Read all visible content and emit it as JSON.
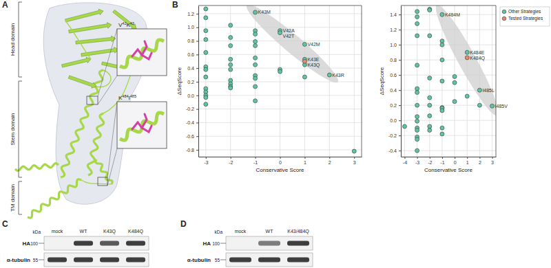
{
  "panel_labels": [
    "A",
    "B",
    "C",
    "D"
  ],
  "panel_a": {
    "domains": [
      "Head domain",
      "Stem domain",
      "TM domain"
    ],
    "insets": [
      {
        "residues": [
          {
            "aa": "V",
            "pos": "42"
          },
          {
            "aa": "K",
            "pos": "43"
          }
        ]
      },
      {
        "residues": [
          {
            "aa": "K",
            "pos": "484"
          },
          {
            "aa": "I",
            "pos": "485"
          }
        ]
      }
    ]
  },
  "chart_data": [
    {
      "type": "scatter",
      "x_label": "Conservative Score",
      "y_label": "ΔSeqScore",
      "xlim": [
        -3.3,
        3.3
      ],
      "ylim": [
        -0.9,
        1.32
      ],
      "xticks": [
        -3,
        -2,
        -1,
        0,
        1,
        2,
        3
      ],
      "yticks": [
        -0.8,
        -0.6,
        -0.4,
        -0.2,
        {
          "value": 0,
          "label": "0.0"
        },
        0.2,
        0.4,
        0.6,
        0.8,
        {
          "value": 1,
          "label": "1.0"
        },
        1.2
      ],
      "grid": true,
      "series": [
        {
          "name": "Other Strategies",
          "color": "#63c2a5",
          "x": [
            -3,
            -3,
            -3,
            -3,
            -3,
            -3,
            -3,
            -3,
            -3,
            -3,
            -3,
            -3,
            -3,
            -2,
            -2,
            -2,
            -2,
            -2,
            -2,
            -2,
            -2,
            -2,
            -2,
            -1,
            -1,
            -1,
            -1,
            -1,
            -1,
            -1,
            -1,
            -1,
            -1,
            -1,
            0,
            0,
            0,
            0,
            1,
            1,
            1,
            1,
            2,
            3
          ],
          "values": [
            1.27,
            1.14,
            0.95,
            0.82,
            0.63,
            0.42,
            0.38,
            0.27,
            0.1,
            0.05,
            0.0,
            -0.03,
            -0.13,
            1.03,
            0.85,
            0.73,
            0.53,
            0.45,
            0.38,
            0.22,
            0.17,
            0.13,
            0.11,
            1.22,
            0.95,
            0.9,
            0.79,
            0.73,
            0.55,
            0.45,
            0.29,
            0.25,
            0.13,
            -0.08,
            0.95,
            0.92,
            0.38,
            0.35,
            0.75,
            0.53,
            0.45,
            0.27,
            0.3,
            -0.82
          ]
        },
        {
          "name": "Tested Strategies",
          "color": "#e58a72",
          "x": [
            1
          ],
          "values": [
            0.5
          ]
        }
      ],
      "annotations": [
        {
          "text": "K43M",
          "x": -1,
          "y": 1.22
        },
        {
          "text": "V42A",
          "x": 0,
          "y": 0.95
        },
        {
          "text": "V42T",
          "x": 0,
          "y": 0.92
        },
        {
          "text": "V42M",
          "x": 1,
          "y": 0.75
        },
        {
          "text": "K43E",
          "x": 1,
          "y": 0.53
        },
        {
          "text": "K43Q",
          "x": 1,
          "y": 0.5
        },
        {
          "text": "K43R",
          "x": 2,
          "y": 0.3
        }
      ]
    },
    {
      "type": "scatter",
      "x_label": "Conservative Score",
      "y_label": "ΔSeqScore",
      "xlim": [
        -4.3,
        3.3
      ],
      "ylim": [
        -0.48,
        1.52
      ],
      "xticks": [
        -4,
        -3,
        -2,
        -1,
        0,
        1,
        2,
        3
      ],
      "yticks": [
        -0.4,
        -0.2,
        {
          "value": 0,
          "label": "0.0"
        },
        0.2,
        0.4,
        0.6,
        0.8,
        {
          "value": 1,
          "label": "1.0"
        },
        1.2,
        1.4
      ],
      "grid": true,
      "legend": "right",
      "series": [
        {
          "name": "Other Strategies",
          "color": "#63c2a5",
          "x": [
            -4,
            -3,
            -3,
            -3,
            -3,
            -3,
            -3,
            -3,
            -3,
            -3,
            -3,
            -3,
            -3,
            -3,
            -3,
            -3,
            -2,
            -2,
            -2,
            -2,
            -2,
            -2,
            -2,
            -2,
            -2,
            -1,
            -1,
            -1,
            -1,
            -1,
            -1,
            -1,
            -1,
            -1,
            -1,
            0,
            0,
            0,
            1,
            1,
            2,
            2,
            3
          ],
          "values": [
            -0.08,
            1.44,
            1.37,
            1.28,
            1.12,
            0.73,
            0.42,
            0.37,
            0.2,
            0.05,
            -0.01,
            -0.1,
            -0.13,
            -0.22,
            -0.25,
            -0.4,
            1.47,
            1.46,
            1.12,
            0.56,
            0.3,
            0.2,
            0.06,
            -0.08,
            -0.13,
            1.4,
            1.05,
            1.0,
            0.8,
            0.52,
            0.17,
            0.16,
            0.13,
            -0.1,
            -0.18,
            0.58,
            0.5,
            0.25,
            0.9,
            0.32,
            0.4,
            0.2,
            0.19
          ]
        },
        {
          "name": "Tested Strategies",
          "color": "#e58a72",
          "x": [
            1
          ],
          "values": [
            0.83
          ]
        }
      ],
      "annotations": [
        {
          "text": "K484M",
          "x": -1,
          "y": 1.4
        },
        {
          "text": "K484E",
          "x": 1,
          "y": 0.9
        },
        {
          "text": "K484Q",
          "x": 1,
          "y": 0.83
        },
        {
          "text": "I485L",
          "x": 2,
          "y": 0.4
        },
        {
          "text": "I485V",
          "x": 3,
          "y": 0.19
        }
      ]
    }
  ],
  "blots": [
    {
      "lanes": [
        "mock",
        "WT",
        "K43Q",
        "K484Q"
      ],
      "unit": "kDa",
      "rows": [
        {
          "label": "HA",
          "marker": 100,
          "intensity": [
            0,
            1,
            0.85,
            1
          ]
        },
        {
          "label": "α-tubulin",
          "marker": 55,
          "intensity": [
            1,
            1,
            1,
            1
          ]
        }
      ]
    },
    {
      "lanes": [
        "mock",
        "WT",
        "K43/484Q"
      ],
      "unit": "kDa",
      "rows": [
        {
          "label": "HA",
          "marker": 100,
          "intensity": [
            0,
            0.65,
            1
          ]
        },
        {
          "label": "α-tubulin",
          "marker": 55,
          "intensity": [
            1,
            1,
            1
          ]
        }
      ]
    }
  ]
}
